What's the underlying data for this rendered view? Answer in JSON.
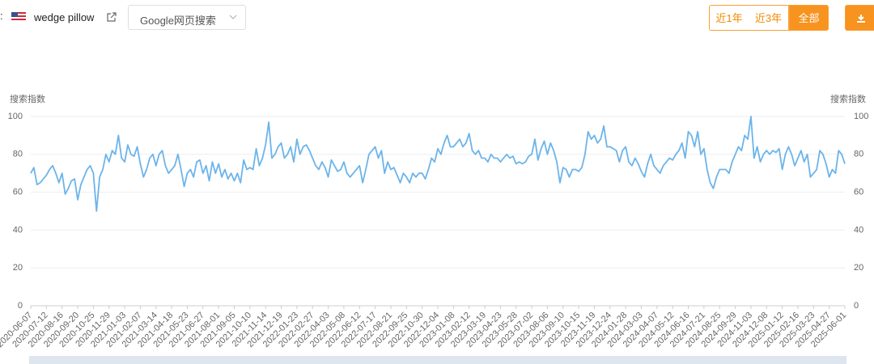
{
  "header": {
    "keyword": "wedge pillow",
    "source": "Google网页搜索",
    "ranges": [
      "近1年",
      "近3年",
      "全部"
    ]
  },
  "chart_data": {
    "type": "line",
    "y_axis_label": "搜索指数",
    "y2_axis_label": "搜索指数",
    "color": "#6cb4ea",
    "categories": [
      "2020-06-07",
      null,
      null,
      null,
      null,
      "2020-07-12",
      null,
      null,
      null,
      null,
      "2020-08-16",
      null,
      null,
      null,
      null,
      "2020-09-20",
      null,
      null,
      null,
      null,
      "2020-10-25",
      null,
      null,
      null,
      null,
      "2020-11-29",
      null,
      null,
      null,
      null,
      "2021-01-03",
      null,
      null,
      null,
      null,
      "2021-02-07",
      null,
      null,
      null,
      null,
      "2021-03-14",
      null,
      null,
      null,
      null,
      "2021-04-18",
      null,
      null,
      null,
      null,
      "2021-05-23",
      null,
      null,
      null,
      null,
      "2021-06-27",
      null,
      null,
      null,
      null,
      "2021-08-01",
      null,
      null,
      null,
      null,
      "2021-09-05",
      null,
      null,
      null,
      null,
      "2021-10-10",
      null,
      null,
      null,
      null,
      "2021-11-14",
      null,
      null,
      null,
      null,
      "2021-12-19",
      null,
      null,
      null,
      null,
      "2022-01-23",
      null,
      null,
      null,
      null,
      "2022-02-27",
      null,
      null,
      null,
      null,
      "2022-04-03",
      null,
      null,
      null,
      null,
      "2022-05-08",
      null,
      null,
      null,
      null,
      "2022-06-12",
      null,
      null,
      null,
      null,
      "2022-07-17",
      null,
      null,
      null,
      null,
      "2022-08-21",
      null,
      null,
      null,
      null,
      "2022-09-25",
      null,
      null,
      null,
      null,
      "2022-10-30",
      null,
      null,
      null,
      null,
      "2022-12-04",
      null,
      null,
      null,
      null,
      "2023-01-08",
      null,
      null,
      null,
      null,
      "2023-02-12",
      null,
      null,
      null,
      null,
      "2023-03-19",
      null,
      null,
      null,
      null,
      "2023-04-23",
      null,
      null,
      null,
      null,
      "2023-05-28",
      null,
      null,
      null,
      null,
      "2023-07-02",
      null,
      null,
      null,
      null,
      "2023-08-06",
      null,
      null,
      null,
      null,
      "2023-09-10",
      null,
      null,
      null,
      null,
      "2023-10-15",
      null,
      null,
      null,
      null,
      "2023-11-19",
      null,
      null,
      null,
      null,
      "2023-12-24",
      null,
      null,
      null,
      null,
      "2024-01-28",
      null,
      null,
      null,
      null,
      "2024-03-03",
      null,
      null,
      null,
      null,
      "2024-04-07",
      null,
      null,
      null,
      null,
      "2024-05-12",
      null,
      null,
      null,
      null,
      "2024-06-16",
      null,
      null,
      null,
      null,
      "2024-07-21",
      null,
      null,
      null,
      null,
      "2024-08-25",
      null,
      null,
      null,
      null,
      "2024-09-29",
      null,
      null,
      null,
      null,
      "2024-11-03",
      null,
      null,
      null,
      null,
      "2024-12-08",
      null,
      null,
      null,
      null,
      "2025-01-12",
      null,
      null,
      null,
      null,
      "2025-02-16",
      null,
      null,
      null,
      null,
      "2025-03-23",
      null,
      null,
      null,
      null,
      "2025-04-27",
      null,
      null,
      null,
      null,
      "2025-06-01"
    ],
    "values": [
      70,
      73,
      64,
      65,
      67,
      69,
      72,
      74,
      70,
      65,
      70,
      59,
      62,
      66,
      67,
      56,
      64,
      68,
      72,
      74,
      70,
      50,
      68,
      72,
      80,
      76,
      82,
      80,
      90,
      78,
      76,
      85,
      80,
      79,
      84,
      75,
      68,
      72,
      78,
      80,
      74,
      80,
      82,
      74,
      70,
      72,
      74,
      80,
      72,
      63,
      70,
      72,
      68,
      76,
      77,
      70,
      74,
      66,
      76,
      70,
      75,
      68,
      72,
      67,
      70,
      66,
      70,
      65,
      77,
      72,
      73,
      72,
      83,
      74,
      78,
      85,
      97,
      78,
      80,
      84,
      86,
      78,
      80,
      84,
      76,
      88,
      80,
      84,
      85,
      82,
      78,
      74,
      72,
      76,
      73,
      68,
      77,
      74,
      71,
      72,
      76,
      70,
      68,
      70,
      72,
      74,
      65,
      72,
      80,
      82,
      84,
      78,
      82,
      70,
      76,
      72,
      73,
      69,
      65,
      70,
      68,
      65,
      70,
      68,
      70,
      70,
      67,
      72,
      78,
      76,
      83,
      80,
      86,
      90,
      84,
      84,
      86,
      88,
      84,
      86,
      91,
      82,
      80,
      82,
      78,
      78,
      76,
      80,
      78,
      78,
      76,
      78,
      80,
      78,
      79,
      75,
      76,
      75,
      76,
      79,
      80,
      88,
      77,
      83,
      87,
      80,
      86,
      82,
      76,
      65,
      73,
      72,
      68,
      72,
      72,
      71,
      73,
      80,
      92,
      88,
      90,
      86,
      88,
      95,
      84,
      84,
      83,
      82,
      76,
      82,
      84,
      76,
      74,
      78,
      75,
      71,
      68,
      75,
      80,
      74,
      72,
      70,
      74,
      76,
      78,
      77,
      80,
      82,
      86,
      78,
      92,
      90,
      84,
      92,
      80,
      83,
      72,
      65,
      62,
      68,
      72,
      72,
      72,
      70,
      76,
      80,
      84,
      82,
      90,
      88,
      100,
      78,
      84,
      76,
      80,
      82,
      80,
      82,
      81,
      83,
      72,
      80,
      84,
      80,
      74,
      78,
      82,
      76,
      80,
      68,
      70,
      72,
      82,
      80,
      75,
      68,
      72,
      70,
      82,
      80,
      75
    ],
    "ylim": [
      0,
      100
    ],
    "yticks": [
      0,
      20,
      40,
      60,
      80,
      100
    ],
    "y2lim": [
      0,
      100
    ],
    "y2ticks": [
      0,
      20,
      40,
      60,
      80,
      100
    ],
    "grid": true
  }
}
